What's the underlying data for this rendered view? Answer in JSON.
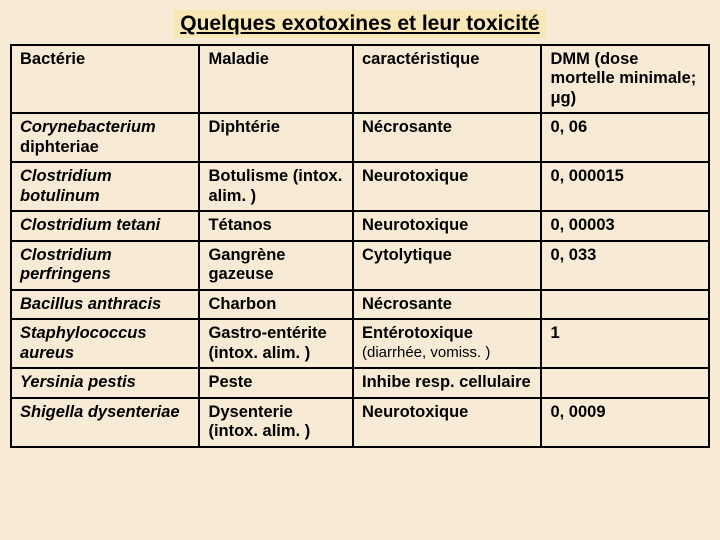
{
  "background_color": "#f8ebd6",
  "title_bg": "#f9e7b6",
  "title": "Quelques exotoxines et leur toxicité",
  "headers": {
    "c1": "Bactérie",
    "c2": "Maladie",
    "c3": "caractéristique",
    "c4_main": "DMM",
    "c4_paren": "(dose mortelle minimale; μg)"
  },
  "rows": [
    {
      "bact": "Corynebacterium diphteriae",
      "bact_italic_run": "Corynebacterium",
      "bact_rest": " diphteriae",
      "maladie": "Diphtérie",
      "carac": "Nécrosante",
      "carac_note": "",
      "dmm": "0, 06"
    },
    {
      "bact": "Clostridium botulinum",
      "bact_italic_run": "Clostridium botulinum",
      "bact_rest": "",
      "maladie": "Botulisme (intox. alim. )",
      "carac": "Neurotoxique",
      "carac_note": "",
      "dmm": "0, 000015"
    },
    {
      "bact": "Clostridium tetani",
      "bact_italic_run": "Clostridium tetani",
      "bact_rest": "",
      "maladie": "Tétanos",
      "carac": "Neurotoxique",
      "carac_note": "",
      "dmm": "0, 00003"
    },
    {
      "bact": "Clostridium perfringens",
      "bact_italic_run": "Clostridium perfringens",
      "bact_rest": "",
      "maladie": "Gangrène gazeuse",
      "carac": "Cytolytique",
      "carac_note": "",
      "dmm": "0, 033"
    },
    {
      "bact": "Bacillus anthracis",
      "bact_italic_run": "Bacillus anthracis",
      "bact_rest": "",
      "maladie": "Charbon",
      "carac": "Nécrosante",
      "carac_note": "",
      "dmm": ""
    },
    {
      "bact": "Staphylococcus aureus",
      "bact_italic_run": "Staphylococcus aureus",
      "bact_rest": "",
      "maladie": "Gastro-entérite (intox. alim. )",
      "carac": "Entérotoxique",
      "carac_note": "(diarrhée, vomiss. )",
      "dmm": "1"
    },
    {
      "bact": "Yersinia pestis",
      "bact_italic_run": "Yersinia pestis",
      "bact_rest": "",
      "maladie": "Peste",
      "carac": "Inhibe resp. cellulaire",
      "carac_note": "",
      "dmm": ""
    },
    {
      "bact": "Shigella dysenteriae",
      "bact_italic_run": "Shigella dysenteriae",
      "bact_rest": "",
      "maladie": "Dysenterie (intox. alim. )",
      "carac": "Neurotoxique",
      "carac_note": "",
      "dmm": "0, 0009"
    }
  ]
}
